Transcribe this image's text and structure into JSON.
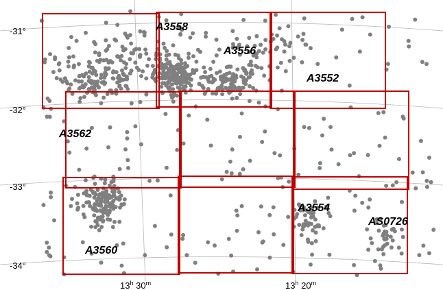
{
  "map": {
    "dec_labels": [
      "-31°",
      "-32°",
      "-33°",
      "-34°"
    ],
    "ra_labels": [
      {
        "h": "13",
        "m": "30"
      },
      {
        "h": "13",
        "m": "20"
      }
    ],
    "clusters": [
      "A3558",
      "A3556",
      "A3552",
      "A3562",
      "A3554",
      "AS0726",
      "A3560"
    ],
    "colors": {
      "field_outline": "#c00000",
      "galaxy_point": "#808080",
      "grid_line": "#b5b5b5"
    }
  }
}
